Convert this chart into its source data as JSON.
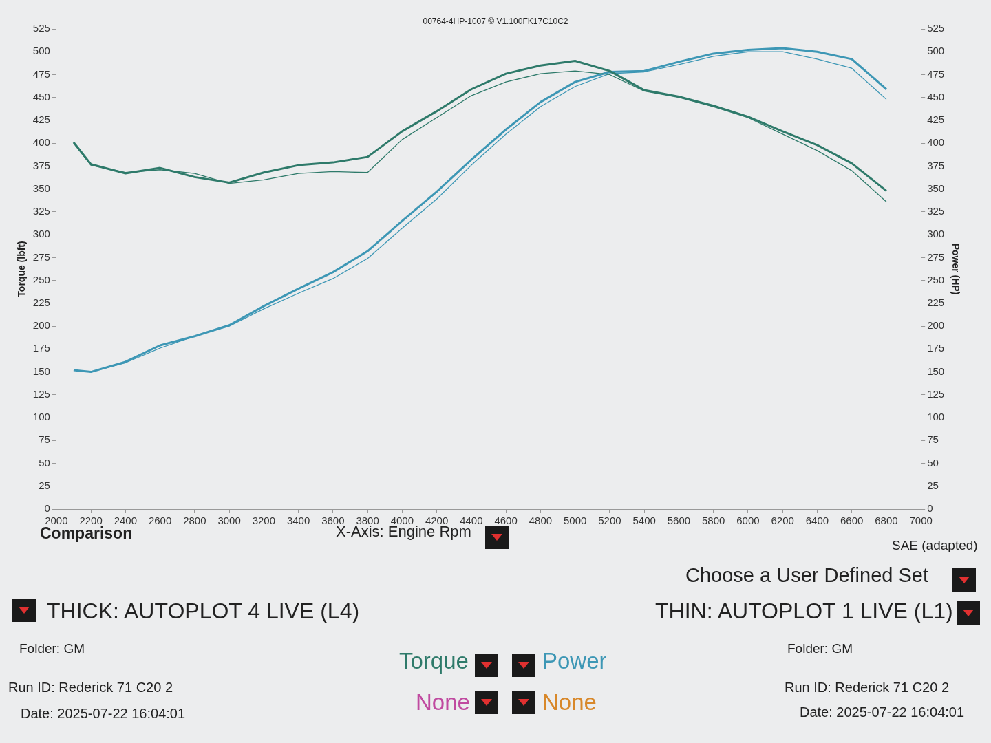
{
  "chart_data": {
    "type": "line",
    "title": "00764-4HP-1007 © V1.100FK17C10C2",
    "xlabel": "X-Axis: Engine Rpm",
    "ylabel": "Torque (lbft)",
    "y2label": "Power (HP)",
    "x": [
      2100,
      2200,
      2400,
      2600,
      2800,
      3000,
      3200,
      3400,
      3600,
      3800,
      4000,
      4200,
      4400,
      4600,
      4800,
      5000,
      5200,
      5400,
      5600,
      5800,
      6000,
      6200,
      6400,
      6600,
      6800
    ],
    "series": [
      {
        "color": "#2e7a6a",
        "values": [
          401,
          377,
          367,
          373,
          363,
          357,
          368,
          376,
          379,
          385,
          413,
          435,
          459,
          476,
          485,
          490,
          479,
          458,
          451,
          441,
          429,
          413,
          398,
          378,
          348
        ]
      },
      {
        "color": "#2e7a6a",
        "values": [
          400,
          376,
          368,
          371,
          367,
          356,
          360,
          367,
          369,
          368,
          404,
          428,
          452,
          467,
          476,
          479,
          475,
          457,
          450,
          440,
          428,
          410,
          392,
          370,
          336
        ]
      },
      {
        "color": "#3d97b5",
        "axis": "y2",
        "values": [
          152,
          150,
          161,
          179,
          189,
          201,
          222,
          241,
          259,
          282,
          315,
          347,
          382,
          415,
          445,
          467,
          478,
          479,
          489,
          498,
          502,
          504,
          500,
          492,
          459
        ]
      },
      {
        "color": "#3d97b5",
        "axis": "y2",
        "values": [
          152,
          150,
          160,
          176,
          189,
          200,
          219,
          236,
          252,
          274,
          307,
          339,
          376,
          410,
          440,
          462,
          476,
          478,
          486,
          495,
          500,
          500,
          492,
          482,
          448
        ]
      }
    ],
    "xlim": [
      2000,
      7000
    ],
    "xticks": [
      2000,
      2200,
      2400,
      2600,
      2800,
      3000,
      3200,
      3400,
      3600,
      3800,
      4000,
      4200,
      4400,
      4600,
      4800,
      5000,
      5200,
      5400,
      5600,
      5800,
      6000,
      6200,
      6400,
      6600,
      6800,
      7000
    ],
    "ylim": [
      0,
      525
    ],
    "yticks": [
      0,
      25,
      50,
      75,
      100,
      125,
      150,
      175,
      200,
      225,
      250,
      275,
      300,
      325,
      350,
      375,
      400,
      425,
      450,
      475,
      500,
      525
    ],
    "y2lim": [
      0,
      525
    ],
    "y2ticks": [
      0,
      25,
      50,
      75,
      100,
      125,
      150,
      175,
      200,
      225,
      250,
      275,
      300,
      325,
      350,
      375,
      400,
      425,
      450,
      475,
      500,
      525
    ],
    "grid": false,
    "legend": false,
    "marker": "none",
    "line_style": "solid",
    "annotations": [
      "Comparison",
      "SAE (adapted)",
      "Choose a User Defined Set",
      "THICK: AUTOPLOT 4 LIVE (L4)",
      "THIN: AUTOPLOT 1 LIVE (L1)",
      "Folder: GM",
      "Run ID: Rederick 71 C20 2",
      "Date: 2025-07-22 16:04:01",
      "Folder: GM",
      "Run ID: Rederick 71 C20 2",
      "Date: 2025-07-22 16:04:01",
      "Torque",
      "Power",
      "None",
      "None"
    ]
  }
}
